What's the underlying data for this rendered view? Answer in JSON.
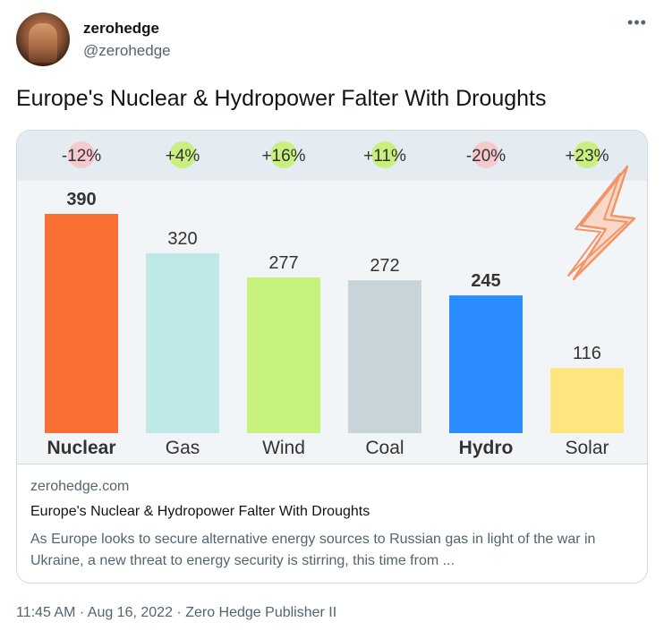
{
  "user": {
    "name": "zerohedge",
    "handle": "@zerohedge"
  },
  "tweet": {
    "text": "Europe's Nuclear & Hydropower Falter With Droughts"
  },
  "card": {
    "domain": "zerohedge.com",
    "title": "Europe's Nuclear & Hydropower Falter With Droughts",
    "description": "As Europe looks to secure alternative energy sources to Russian gas in light of the war in Ukraine, a new threat to energy security is stirring, this time from ..."
  },
  "meta": {
    "time": "11:45 AM",
    "date": "Aug 16, 2022",
    "source": "Zero Hedge Publisher II",
    "separator": "·"
  },
  "icons": {
    "more": "more-horizontal-icon",
    "bolt": "lightning-bolt-icon"
  },
  "colors": {
    "negative_highlight": "#f6c9cc",
    "positive_highlight": "#c9ef7e",
    "text_secondary": "#536471"
  },
  "chart_data": {
    "type": "bar",
    "categories": [
      "Nuclear",
      "Gas",
      "Wind",
      "Coal",
      "Hydro",
      "Solar"
    ],
    "values": [
      390,
      320,
      277,
      272,
      245,
      116
    ],
    "changes": [
      "-12%",
      "+4%",
      "+16%",
      "+11%",
      "-20%",
      "+23%"
    ],
    "change_sign": [
      "negative",
      "positive",
      "positive",
      "positive",
      "negative",
      "positive"
    ],
    "bold_categories": [
      "Nuclear",
      "Hydro"
    ],
    "colors": [
      "#fa6f34",
      "#bfe9e6",
      "#c7f27c",
      "#c8d3da",
      "#2b8cff",
      "#ffe57e"
    ],
    "ylim": [
      0,
      390
    ],
    "grid": false,
    "legend": "none"
  }
}
